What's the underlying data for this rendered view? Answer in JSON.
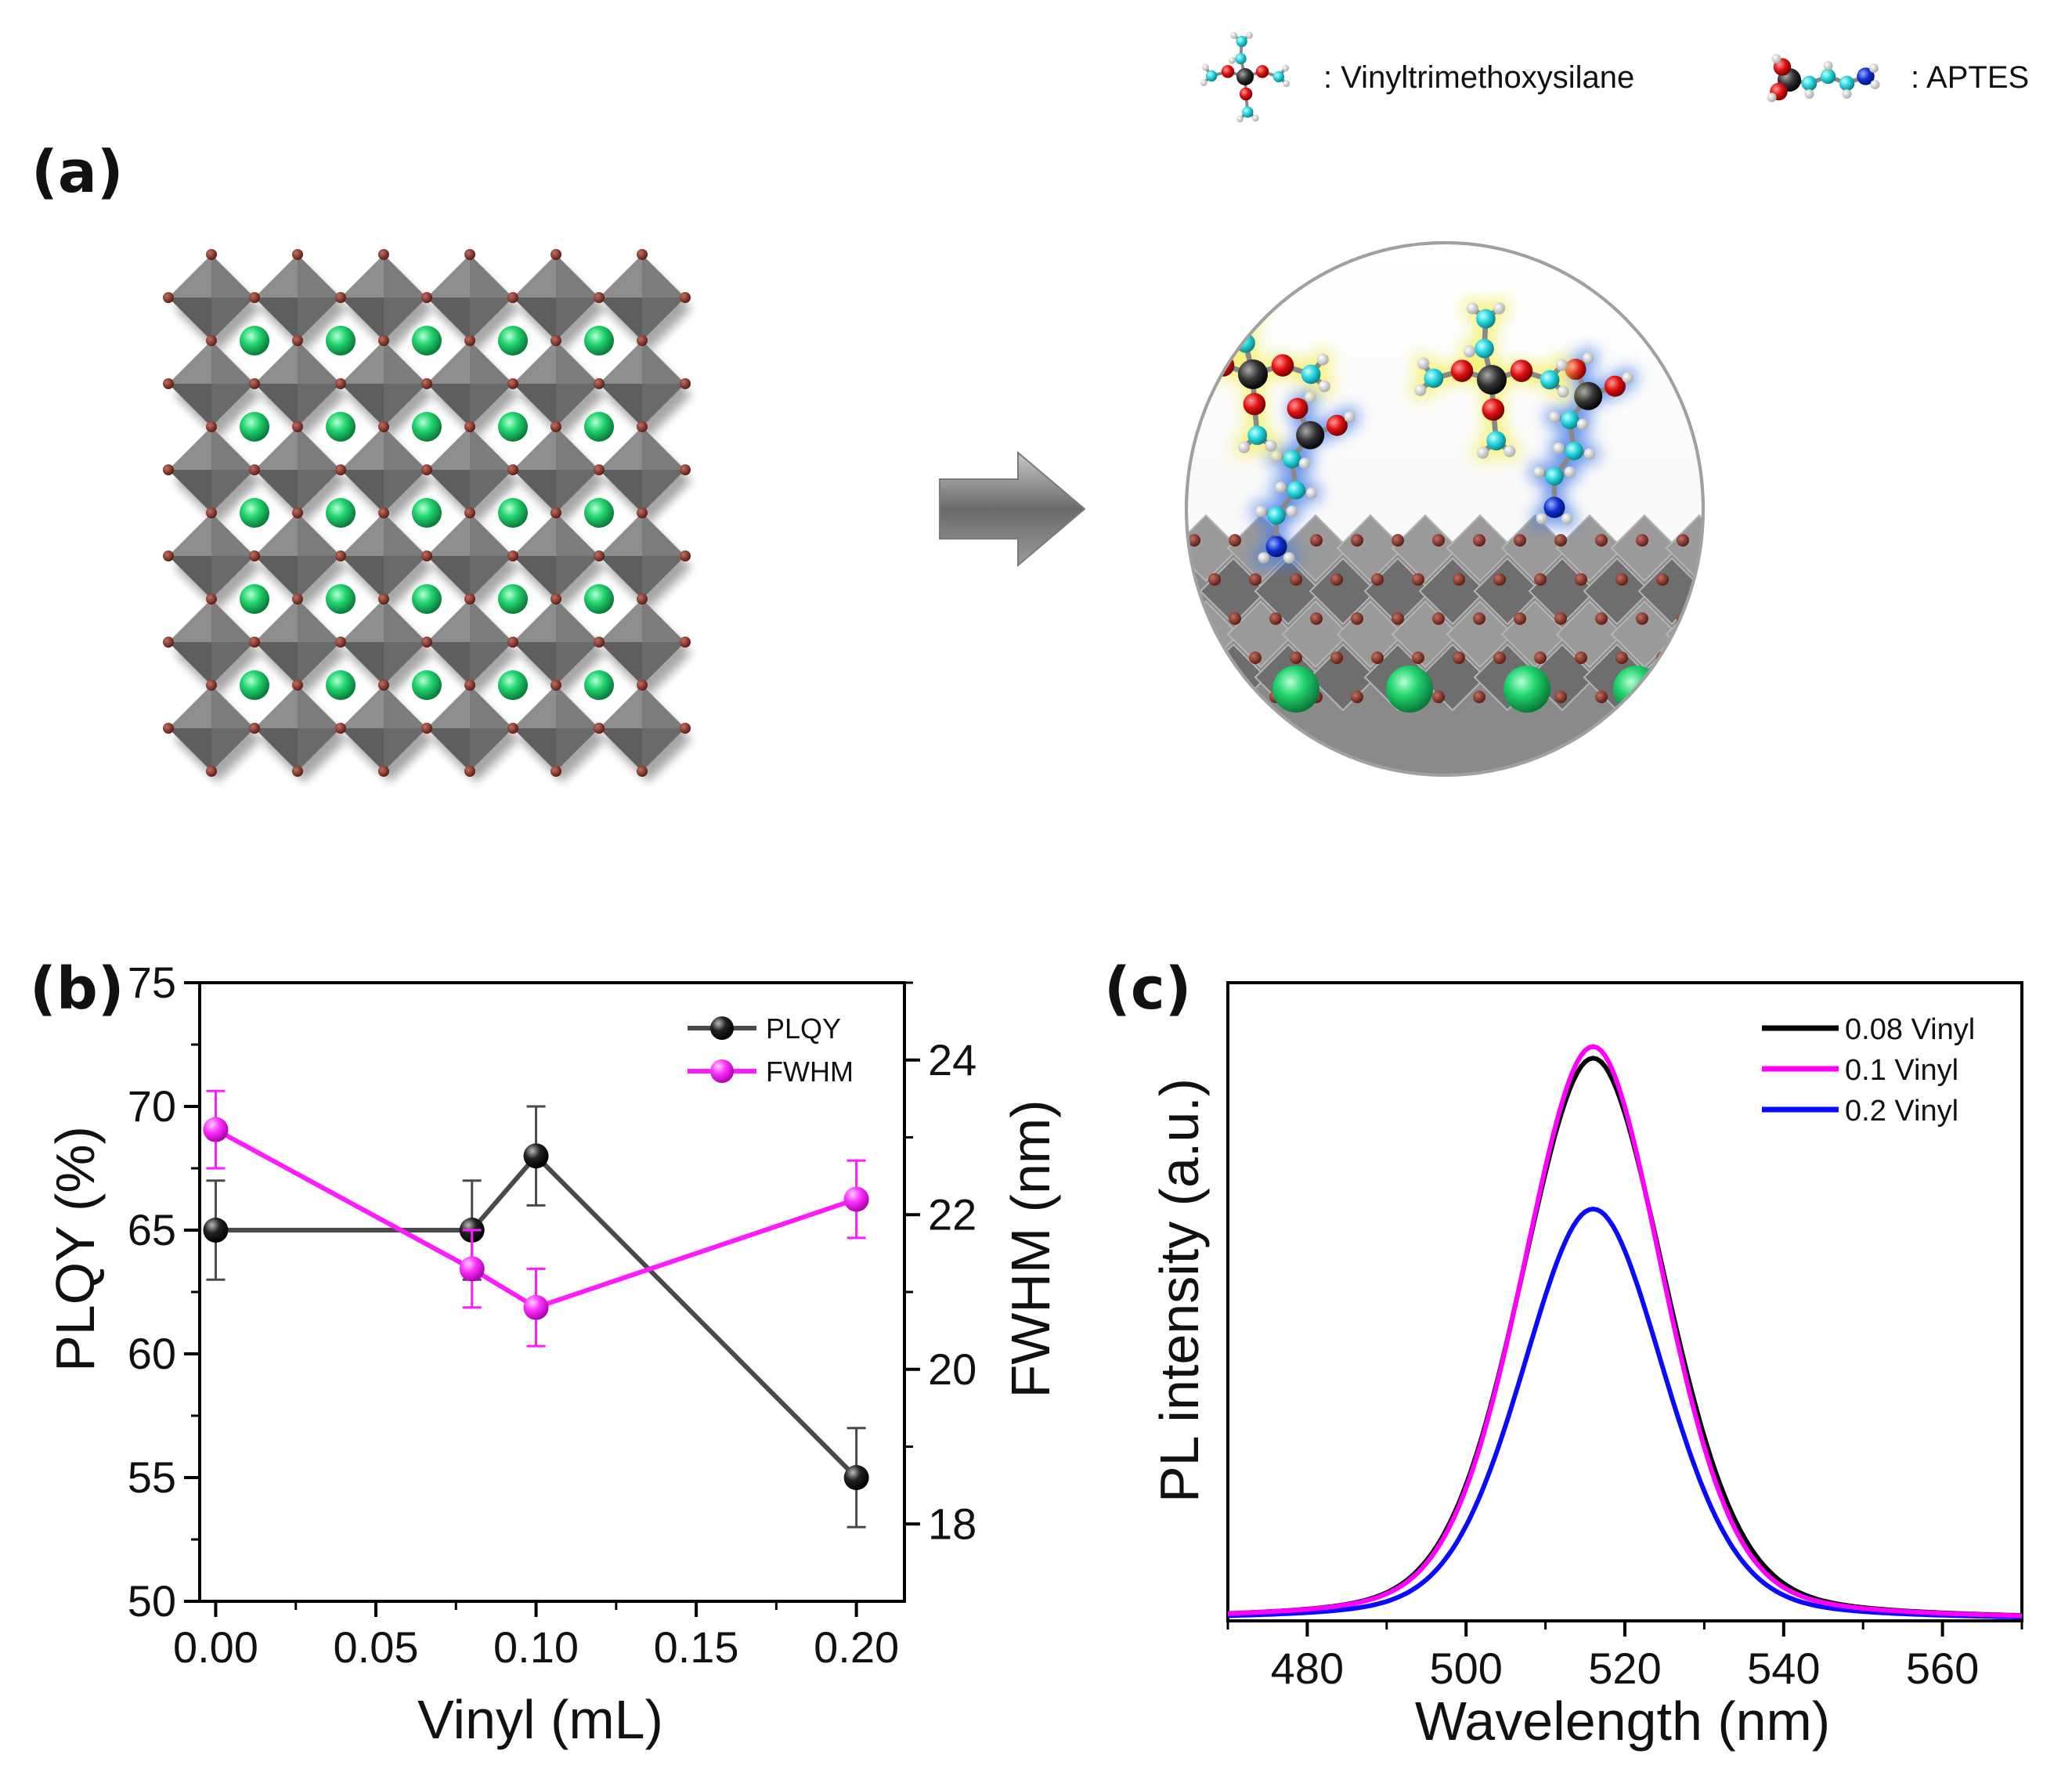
{
  "panel_a": {
    "label": "(a)",
    "legend": {
      "vinyl": ": Vinyltrimethoxysilane",
      "aptes": ": APTES"
    },
    "colors": {
      "octahedron": "#6b6b6b",
      "halide": "#7a2a20",
      "cation": "#1ec76a",
      "carbon": "#22d4dd",
      "oxygen": "#e01010",
      "nitrogen": "#1030d0",
      "silicon": "#333333",
      "hydrogen": "#f0f0f0",
      "vinyl_glow": "#f4ef60",
      "aptes_glow": "#4a7ee6"
    }
  },
  "chart_data": [
    {
      "id": "b",
      "panel_label": "(b)",
      "type": "line",
      "xlabel": "Vinyl (mL)",
      "ylabel": "PLQY (%)",
      "y2label": "FWHM (nm)",
      "xlim": [
        -0.005,
        0.215
      ],
      "ylim": [
        50,
        75
      ],
      "y2lim": [
        17,
        25
      ],
      "xticks": [
        "0.00",
        "0.05",
        "0.10",
        "0.15",
        "0.20"
      ],
      "xtick_values": [
        0.0,
        0.05,
        0.1,
        0.15,
        0.2
      ],
      "yticks": [
        "50",
        "55",
        "60",
        "65",
        "70",
        "75"
      ],
      "ytick_values": [
        50,
        55,
        60,
        65,
        70,
        75
      ],
      "y2ticks": [
        "18",
        "20",
        "22",
        "24"
      ],
      "y2tick_values": [
        18,
        20,
        22,
        24
      ],
      "series": [
        {
          "name": "PLQY",
          "axis": "left",
          "color": "#4a4a4a",
          "marker": "#111111",
          "x": [
            0.0,
            0.08,
            0.1,
            0.2
          ],
          "values": [
            65,
            65,
            68,
            55
          ],
          "err": [
            2,
            2,
            2,
            2
          ]
        },
        {
          "name": "FWHM",
          "axis": "right",
          "color": "#ff1aff",
          "marker": "#ff33ff",
          "x": [
            0.0,
            0.08,
            0.1,
            0.2
          ],
          "values": [
            23.1,
            21.3,
            20.8,
            22.2
          ],
          "err": [
            0.5,
            0.5,
            0.5,
            0.5
          ]
        }
      ],
      "legend_position": "top-right"
    },
    {
      "id": "c",
      "panel_label": "(c)",
      "type": "line",
      "xlabel": "Wavelength (nm)",
      "ylabel": "PL intensity (a.u.)",
      "xlim": [
        470,
        570
      ],
      "ylim": [
        0,
        1.1
      ],
      "xticks": [
        "480",
        "500",
        "520",
        "540",
        "560"
      ],
      "xtick_values": [
        480,
        500,
        520,
        540,
        560
      ],
      "peak_nm": 516,
      "series": [
        {
          "name": "0.08 Vinyl",
          "color": "#000000",
          "amplitude": 0.97,
          "hwhm_left": 10.8,
          "hwhm_right": 10.8
        },
        {
          "name": "0.1 Vinyl",
          "color": "#ff00ff",
          "amplitude": 0.99,
          "hwhm_left": 10.6,
          "hwhm_right": 10.4
        },
        {
          "name": "0.2 Vinyl",
          "color": "#0a0aff",
          "amplitude": 0.71,
          "hwhm_left": 10.6,
          "hwhm_right": 10.6
        }
      ],
      "legend_position": "top-right"
    }
  ]
}
